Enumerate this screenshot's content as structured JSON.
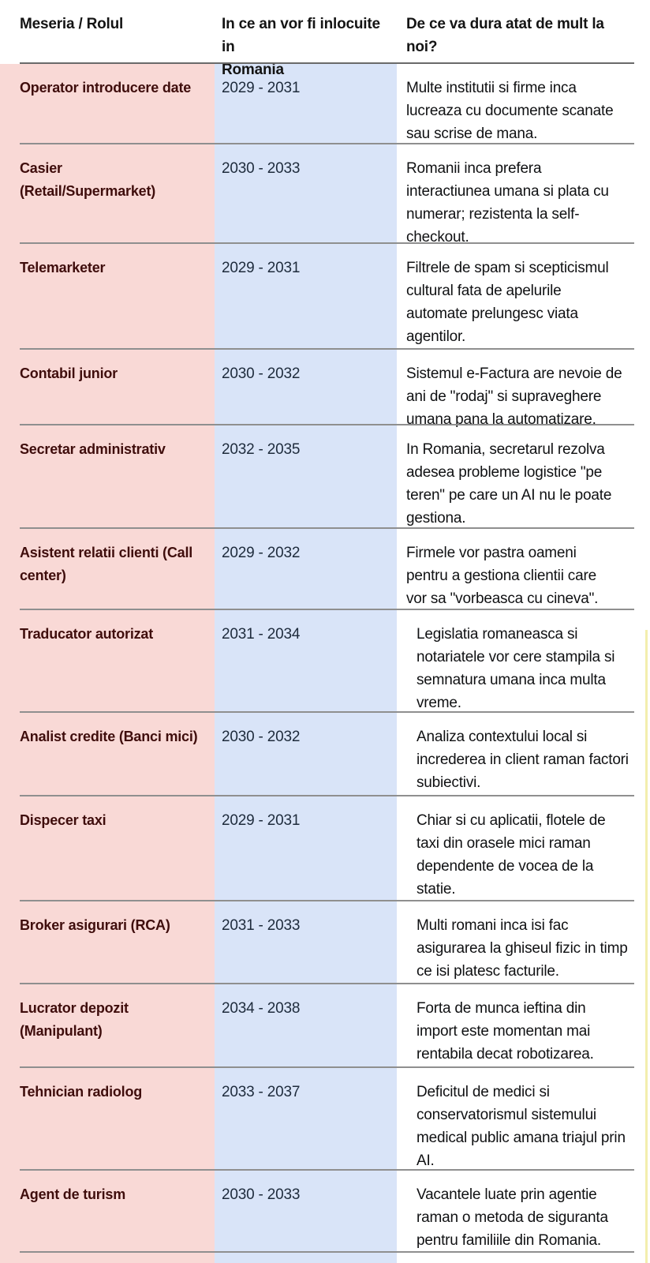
{
  "table": {
    "headers": [
      "Meseria / Rolul",
      "In ce an vor fi inlocuite in\nRomania",
      "De ce va dura atat de mult la\nnoi?"
    ],
    "rows": [
      {
        "role": "Operator introducere date",
        "years": "2029 - 2031",
        "reason": "Multe institutii si firme inca\nlucreaza cu documente scanate\nsau scrise de mana."
      },
      {
        "role": "Casier\n(Retail/Supermarket)",
        "years": "2030 - 2033",
        "reason": "Romanii inca prefera\ninteractiunea umana si plata cu\nnumerar; rezistenta la self-\ncheckout."
      },
      {
        "role": "Telemarketer",
        "years": "2029 - 2031",
        "reason": "Filtrele de spam si scepticismul\ncultural fata de apelurile\nautomate prelungesc viata\nagentilor."
      },
      {
        "role": "Contabil junior",
        "years": "2030 - 2032",
        "reason": "Sistemul e-Factura are nevoie de\nani de \"rodaj\" si supraveghere\numana pana la automatizare."
      },
      {
        "role": "Secretar administrativ",
        "years": "2032 - 2035",
        "reason": "In Romania, secretarul rezolva\nadesea probleme logistice \"pe\nteren\" pe care un AI nu le poate\ngestiona."
      },
      {
        "role": "Asistent relatii clienti (Call\ncenter)",
        "years": "2029 - 2032",
        "reason": "Firmele vor pastra oameni\npentru a gestiona clientii care\nvor sa \"vorbeasca cu cineva\"."
      },
      {
        "role": "Traducator autorizat",
        "years": "2031 - 2034",
        "reason": "Legislatia romaneasca si\nnotariatele vor cere stampila si\nsemnatura umana inca multa\nvreme."
      },
      {
        "role": "Analist credite (Banci mici)",
        "years": "2030 - 2032",
        "reason": "Analiza contextului local si\nincrederea in client raman factori\nsubiectivi."
      },
      {
        "role": "Dispecer taxi",
        "years": "2029 - 2031",
        "reason": "Chiar si cu aplicatii, flotele de\ntaxi din orasele mici raman\ndependente de vocea de la\nstatie."
      },
      {
        "role": "Broker asigurari (RCA)",
        "years": "2031 - 2033",
        "reason": "Multi romani inca isi fac\nasigurarea la ghiseul fizic in timp\nce isi platesc facturile."
      },
      {
        "role": "Lucrator depozit\n(Manipulant)",
        "years": "2034 - 2038",
        "reason": "Forta de munca ieftina din\nimport este momentan mai\nrentabila decat robotizarea."
      },
      {
        "role": "Tehnician radiolog",
        "years": "2033 - 2037",
        "reason": "Deficitul de medici si\nconservatorismul sistemului\nmedical public amana triajul prin\nAI."
      },
      {
        "role": "Agent de turism",
        "years": "2030 - 2033",
        "reason": "Vacantele luate prin agentie\nraman o metoda de siguranta\npentru familiile din Romania."
      }
    ]
  },
  "colors": {
    "pink": "#f9d9d6",
    "blue": "#d9e4f8",
    "maroon": "#3f0d0c",
    "navy": "#1e2b3c",
    "ink": "#101113",
    "rule": "#8f8f8f",
    "yellow": "#f3eeae"
  }
}
